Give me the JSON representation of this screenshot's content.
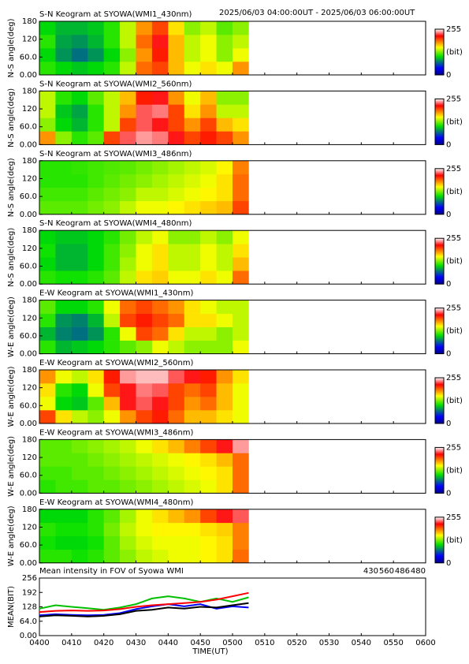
{
  "time_range": "2025/06/03 04:00:00UT - 2025/06/03 06:00:00UT",
  "chart_data": [
    {
      "type": "heatmap",
      "title": "S-N Keogram at SYOWA(WMI1_430nm)",
      "ylabel": "N-S angle(deg)",
      "ylim": [
        0,
        180
      ],
      "yticks": [
        {
          "value": 0,
          "label": "0.00"
        },
        {
          "value": 60,
          "label": "60.0"
        },
        120,
        180
      ],
      "x": [
        "0400",
        "0405",
        "0410",
        "0415",
        "0420",
        "0425",
        "0430",
        "0435",
        "0440",
        "0445",
        "0450",
        "0455",
        "0500"
      ],
      "colormap": "rainbow",
      "zlim": [
        0,
        255
      ],
      "zticks": [
        0,
        255
      ],
      "zlabel": "(bit)",
      "values": [
        [
          110,
          100,
          95,
          100,
          110,
          140,
          190,
          200,
          170,
          150,
          160,
          150,
          180
        ],
        [
          100,
          80,
          70,
          80,
          100,
          130,
          180,
          210,
          170,
          140,
          150,
          130,
          150
        ],
        [
          110,
          85,
          80,
          90,
          110,
          140,
          190,
          220,
          170,
          140,
          150,
          130,
          140
        ],
        [
          100,
          90,
          90,
          95,
          110,
          140,
          180,
          200,
          160,
          130,
          140,
          120,
          130
        ]
      ]
    },
    {
      "type": "heatmap",
      "title": "S-N Keogram at SYOWA(WMI2_560nm)",
      "ylabel": "N-S angle(deg)",
      "ylim": [
        0,
        180
      ],
      "yticks": [
        {
          "value": 0,
          "label": "0.00"
        },
        {
          "value": 60,
          "label": "60.0"
        },
        120,
        180
      ],
      "x": [
        "0400",
        "0405",
        "0410",
        "0415",
        "0420",
        "0425",
        "0430",
        "0435",
        "0440",
        "0445",
        "0450",
        "0455",
        "0500"
      ],
      "colormap": "rainbow",
      "zlim": [
        0,
        255
      ],
      "zticks": [
        0,
        255
      ],
      "zlabel": "(bit)",
      "values": [
        [
          180,
          130,
          110,
          120,
          200,
          230,
          240,
          235,
          220,
          200,
          210,
          200,
          180
        ],
        [
          130,
          100,
          90,
          110,
          140,
          200,
          230,
          220,
          200,
          180,
          200,
          170,
          160
        ],
        [
          140,
          95,
          85,
          110,
          140,
          180,
          230,
          235,
          200,
          160,
          180,
          140,
          140
        ],
        [
          140,
          110,
          100,
          120,
          140,
          170,
          210,
          220,
          180,
          150,
          170,
          130,
          130
        ]
      ]
    },
    {
      "type": "heatmap",
      "title": "S-N Keogram at SYOWA(WMI3_486nm)",
      "ylabel": "N-S angle(deg)",
      "ylim": [
        0,
        180
      ],
      "yticks": [
        {
          "value": 0,
          "label": "0.00"
        },
        {
          "value": 60,
          "label": "60.0"
        },
        120,
        180
      ],
      "x": [
        "0400",
        "0405",
        "0410",
        "0415",
        "0420",
        "0425",
        "0430",
        "0435",
        "0440",
        "0445",
        "0450",
        "0455",
        "0500"
      ],
      "colormap": "rainbow",
      "zlim": [
        0,
        255
      ],
      "zticks": [
        0,
        255
      ],
      "zlabel": "(bit)",
      "values": [
        [
          120,
          120,
          120,
          125,
          130,
          140,
          150,
          150,
          155,
          160,
          165,
          170,
          200
        ],
        [
          115,
          115,
          115,
          120,
          125,
          130,
          140,
          140,
          145,
          150,
          155,
          160,
          190
        ],
        [
          110,
          110,
          110,
          115,
          120,
          125,
          130,
          135,
          140,
          145,
          150,
          160,
          190
        ],
        [
          110,
          110,
          112,
          115,
          118,
          120,
          125,
          130,
          135,
          140,
          145,
          155,
          185
        ]
      ]
    },
    {
      "type": "heatmap",
      "title": "S-N Keogram at SYOWA(WMI4_480nm)",
      "ylabel": "N-S angle(deg)",
      "ylim": [
        0,
        180
      ],
      "yticks": [
        {
          "value": 0,
          "label": "0.00"
        },
        {
          "value": 60,
          "label": "60.0"
        },
        120,
        180
      ],
      "x": [
        "0400",
        "0405",
        "0410",
        "0415",
        "0420",
        "0425",
        "0430",
        "0435",
        "0440",
        "0445",
        "0450",
        "0455",
        "0500"
      ],
      "colormap": "rainbow",
      "zlim": [
        0,
        255
      ],
      "zticks": [
        0,
        255
      ],
      "zlabel": "(bit)",
      "values": [
        [
          110,
          105,
          105,
          110,
          120,
          140,
          160,
          165,
          150,
          150,
          160,
          150,
          190
        ],
        [
          100,
          90,
          90,
          100,
          115,
          135,
          150,
          160,
          140,
          140,
          150,
          140,
          170
        ],
        [
          105,
          90,
          90,
          100,
          115,
          130,
          150,
          160,
          140,
          140,
          150,
          140,
          160
        ],
        [
          100,
          95,
          95,
          100,
          110,
          125,
          140,
          150,
          130,
          130,
          140,
          130,
          150
        ]
      ]
    },
    {
      "type": "heatmap",
      "title": "E-W Keogram at SYOWA(WMI1_430nm)",
      "ylabel": "W-E angle(deg)",
      "ylim": [
        0,
        180
      ],
      "yticks": [
        {
          "value": 0,
          "label": "0.00"
        },
        {
          "value": 60,
          "label": "60.0"
        },
        120,
        180
      ],
      "x": [
        "0400",
        "0405",
        "0410",
        "0415",
        "0420",
        "0425",
        "0430",
        "0435",
        "0440",
        "0445",
        "0450",
        "0455",
        "0500"
      ],
      "colormap": "rainbow",
      "zlim": [
        0,
        255
      ],
      "zticks": [
        0,
        255
      ],
      "zlabel": "(bit)",
      "values": [
        [
          110,
          90,
          95,
          100,
          110,
          120,
          130,
          150,
          140,
          130,
          130,
          130,
          150
        ],
        [
          90,
          75,
          70,
          80,
          110,
          150,
          200,
          190,
          160,
          140,
          140,
          130,
          140
        ],
        [
          110,
          80,
          75,
          90,
          140,
          200,
          210,
          200,
          190,
          160,
          160,
          150,
          140
        ],
        [
          120,
          100,
          100,
          110,
          150,
          190,
          200,
          190,
          180,
          160,
          150,
          140,
          140
        ]
      ]
    },
    {
      "type": "heatmap",
      "title": "E-W Keogram at SYOWA(WMI2_560nm)",
      "ylabel": "W-E angle(deg)",
      "ylim": [
        0,
        180
      ],
      "yticks": [
        {
          "value": 0,
          "label": "0.00"
        },
        {
          "value": 60,
          "label": "60.0"
        },
        120,
        180
      ],
      "x": [
        "0400",
        "0405",
        "0410",
        "0415",
        "0420",
        "0425",
        "0430",
        "0435",
        "0440",
        "0445",
        "0450",
        "0455",
        "0500"
      ],
      "colormap": "rainbow",
      "zlim": [
        0,
        255
      ],
      "zticks": [
        0,
        255
      ],
      "zlabel": "(bit)",
      "values": [
        [
          200,
          160,
          140,
          130,
          150,
          180,
          200,
          210,
          190,
          170,
          170,
          160,
          150
        ],
        [
          150,
          100,
          95,
          120,
          170,
          220,
          230,
          220,
          200,
          180,
          190,
          170,
          150
        ],
        [
          160,
          110,
          100,
          150,
          200,
          220,
          235,
          230,
          200,
          190,
          200,
          170,
          150
        ],
        [
          180,
          150,
          140,
          160,
          210,
          240,
          245,
          245,
          230,
          220,
          210,
          180,
          160
        ]
      ]
    },
    {
      "type": "heatmap",
      "title": "E-W Keogram at SYOWA(WMI3_486nm)",
      "ylabel": "W-E angle(deg)",
      "ylim": [
        0,
        180
      ],
      "yticks": [
        {
          "value": 0,
          "label": "0.00"
        },
        {
          "value": 60,
          "label": "60.0"
        },
        120,
        180
      ],
      "x": [
        "0400",
        "0405",
        "0410",
        "0415",
        "0420",
        "0425",
        "0430",
        "0435",
        "0440",
        "0445",
        "0450",
        "0455",
        "0500"
      ],
      "colormap": "rainbow",
      "zlim": [
        0,
        255
      ],
      "zticks": [
        0,
        255
      ],
      "zlabel": "(bit)",
      "values": [
        [
          110,
          115,
          115,
          120,
          120,
          125,
          130,
          135,
          140,
          145,
          150,
          160,
          190
        ],
        [
          115,
          115,
          120,
          120,
          125,
          130,
          135,
          140,
          145,
          150,
          155,
          160,
          190
        ],
        [
          120,
          120,
          120,
          125,
          130,
          135,
          140,
          145,
          150,
          155,
          160,
          170,
          190
        ],
        [
          120,
          120,
          125,
          130,
          135,
          140,
          150,
          160,
          170,
          185,
          200,
          220,
          240
        ]
      ]
    },
    {
      "type": "heatmap",
      "title": "E-W Keogram at SYOWA(WMI4_480nm)",
      "ylabel": "W-E angle(deg)",
      "ylim": [
        0,
        180
      ],
      "yticks": [
        {
          "value": 0,
          "label": "0.00"
        },
        {
          "value": 60,
          "label": "60.0"
        },
        120,
        180
      ],
      "x": [
        "0400",
        "0405",
        "0410",
        "0415",
        "0420",
        "0425",
        "0430",
        "0435",
        "0440",
        "0445",
        "0450",
        "0455",
        "0500"
      ],
      "colormap": "rainbow",
      "zlim": [
        0,
        255
      ],
      "zticks": [
        0,
        255
      ],
      "zlabel": "(bit)",
      "values": [
        [
          110,
          110,
          105,
          110,
          120,
          130,
          140,
          145,
          150,
          150,
          155,
          160,
          190
        ],
        [
          105,
          100,
          100,
          105,
          120,
          135,
          145,
          150,
          150,
          150,
          155,
          160,
          185
        ],
        [
          110,
          105,
          105,
          110,
          125,
          140,
          150,
          155,
          155,
          155,
          160,
          165,
          185
        ],
        [
          100,
          100,
          100,
          110,
          120,
          135,
          150,
          160,
          170,
          180,
          200,
          220,
          230
        ]
      ]
    },
    {
      "type": "line",
      "title": "Mean intensity in FOV of Syowa WMI",
      "ylabel": "MEAN(BIT)",
      "xlabel": "TIME(UT)",
      "ylim": [
        0,
        256
      ],
      "yticks": [
        {
          "value": 0,
          "label": "0.00"
        },
        {
          "value": 64,
          "label": "64.0"
        },
        128,
        192,
        256
      ],
      "xlim": [
        "0400",
        "0600"
      ],
      "xticks": [
        "0400",
        "0410",
        "0420",
        "0430",
        "0440",
        "0450",
        "0500",
        "0510",
        "0520",
        "0530",
        "0540",
        "0550",
        "0600"
      ],
      "x": [
        "0400",
        "0405",
        "0410",
        "0415",
        "0420",
        "0425",
        "0430",
        "0435",
        "0440",
        "0445",
        "0450",
        "0455",
        "0500",
        "0505"
      ],
      "series": [
        {
          "name": "430",
          "color": "#0000ff",
          "values": [
            90,
            95,
            92,
            90,
            92,
            100,
            118,
            130,
            140,
            130,
            140,
            120,
            130,
            125
          ]
        },
        {
          "name": "560",
          "color": "#00c000",
          "values": [
            120,
            135,
            128,
            122,
            115,
            125,
            140,
            165,
            175,
            165,
            150,
            165,
            150,
            170
          ]
        },
        {
          "name": "486",
          "color": "#ff0000",
          "values": [
            105,
            110,
            112,
            110,
            112,
            118,
            128,
            135,
            140,
            145,
            150,
            160,
            175,
            190
          ]
        },
        {
          "name": "480",
          "color": "#000000",
          "values": [
            85,
            90,
            88,
            85,
            88,
            95,
            110,
            115,
            125,
            120,
            128,
            125,
            135,
            145
          ]
        }
      ]
    }
  ]
}
